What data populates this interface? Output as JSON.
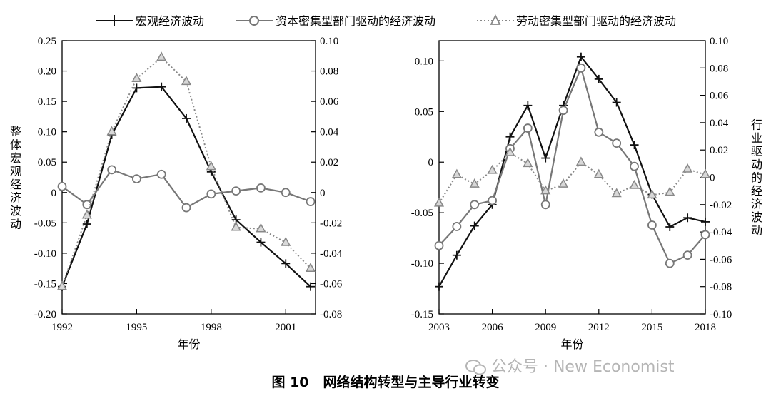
{
  "legend": {
    "macro": "宏观经济波动",
    "capital": "资本密集型部门驱动的经济波动",
    "labor": "劳动密集型部门驱动的经济波动"
  },
  "caption": {
    "number": "图 10",
    "title": "网络结构转型与主导行业转变"
  },
  "watermark": "公众号 · New Economist",
  "colors": {
    "macro": "#111111",
    "capital": "#777777",
    "labor": "#888888"
  },
  "chart_data": [
    {
      "type": "line",
      "xlabel": "年份",
      "ylabel_left": "整体宏观经济波动",
      "x_ticks": [
        1992,
        1995,
        1998,
        2001
      ],
      "xlim": [
        1992,
        2002.2
      ],
      "ylim_left": [
        -0.2,
        0.25
      ],
      "ylim_right": [
        -0.08,
        0.1
      ],
      "y_ticks_left": [
        "0.25",
        "0.20",
        "0.15",
        "0.10",
        "0.05",
        "0",
        "-0.05",
        "-0.10",
        "-0.15",
        "-0.20"
      ],
      "y_ticks_right": [
        "0.10",
        "0.08",
        "0.06",
        "0.04",
        "0.02",
        "0",
        "-0.02",
        "-0.04",
        "-0.06",
        "-0.08"
      ],
      "x": [
        1992,
        1993,
        1994,
        1995,
        1996,
        1997,
        1998,
        1999,
        2000,
        2001,
        2002
      ],
      "series": [
        {
          "name": "宏观经济波动",
          "axis": "left",
          "values": [
            -0.155,
            -0.052,
            0.095,
            0.172,
            0.174,
            0.122,
            0.034,
            -0.045,
            -0.082,
            -0.117,
            -0.155
          ]
        },
        {
          "name": "资本密集型部门驱动的经济波动",
          "axis": "right",
          "values": [
            0.004,
            -0.008,
            0.015,
            0.009,
            0.012,
            -0.01,
            -0.001,
            0.001,
            0.003,
            0.0,
            -0.006
          ]
        },
        {
          "name": "劳动密集型部门驱动的经济波动",
          "axis": "right",
          "values": [
            -0.062,
            -0.015,
            0.04,
            0.075,
            0.089,
            0.073,
            0.017,
            -0.023,
            -0.024,
            -0.033,
            -0.05
          ]
        }
      ]
    },
    {
      "type": "line",
      "xlabel": "年份",
      "ylabel_right": "行业驱动的经济波动",
      "x_ticks": [
        2003,
        2006,
        2009,
        2012,
        2015,
        2018
      ],
      "xlim": [
        2003,
        2018
      ],
      "ylim_left": [
        -0.15,
        0.12
      ],
      "ylim_right": [
        -0.1,
        0.1
      ],
      "y_ticks_left": [
        "0.10",
        "0.05",
        "0",
        "-0.05",
        "-0.10",
        "-0.15"
      ],
      "y_ticks_right": [
        "0.10",
        "0.08",
        "0.06",
        "0.04",
        "0.02",
        "0",
        "-0.02",
        "-0.04",
        "-0.06",
        "-0.08",
        "-0.10"
      ],
      "x": [
        2003,
        2004,
        2005,
        2006,
        2007,
        2008,
        2009,
        2010,
        2011,
        2012,
        2013,
        2014,
        2015,
        2016,
        2017,
        2018
      ],
      "series": [
        {
          "name": "宏观经济波动",
          "axis": "left",
          "values": [
            -0.123,
            -0.092,
            -0.063,
            -0.042,
            0.025,
            0.056,
            0.004,
            0.056,
            0.104,
            0.082,
            0.059,
            0.017,
            -0.032,
            -0.064,
            -0.055,
            -0.059
          ]
        },
        {
          "name": "资本密集型部门驱动的经济波动",
          "axis": "right",
          "values": [
            -0.05,
            -0.036,
            -0.02,
            -0.017,
            0.021,
            0.036,
            -0.02,
            0.049,
            0.08,
            0.033,
            0.025,
            0.008,
            -0.035,
            -0.063,
            -0.057,
            -0.042
          ]
        },
        {
          "name": "劳动密集型部门驱动的经济波动",
          "axis": "right",
          "values": [
            -0.019,
            0.002,
            -0.005,
            0.005,
            0.018,
            0.01,
            -0.01,
            -0.005,
            0.011,
            0.002,
            -0.012,
            -0.006,
            -0.013,
            -0.011,
            0.006,
            0.002
          ]
        }
      ]
    }
  ]
}
